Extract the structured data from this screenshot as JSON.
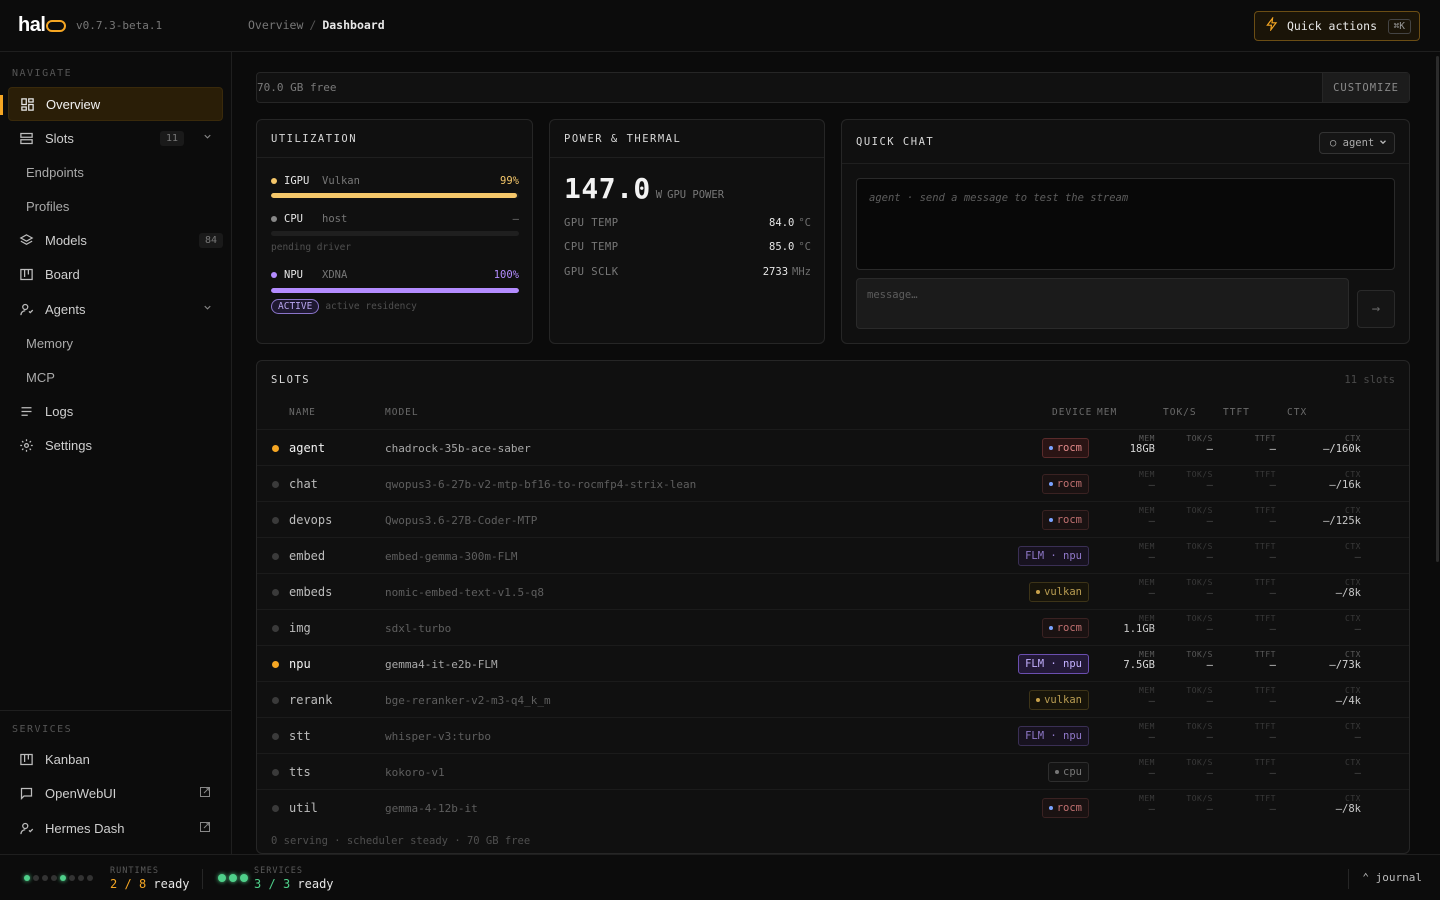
{
  "app": {
    "logo": "hal",
    "version": "v0.7.3-beta.1"
  },
  "breadcrumb": {
    "parent": "Overview",
    "separator": "/",
    "current": "Dashboard"
  },
  "quick_actions": {
    "label": "Quick actions",
    "shortcut": "⌘K"
  },
  "sidebar": {
    "navigate_label": "NAVIGATE",
    "items": [
      {
        "label": "Overview",
        "icon": "dashboard-icon"
      },
      {
        "label": "Slots",
        "icon": "slots-icon",
        "count": "11"
      },
      {
        "label": "Endpoints"
      },
      {
        "label": "Profiles"
      },
      {
        "label": "Models",
        "icon": "layers-icon",
        "count": "84"
      },
      {
        "label": "Board",
        "icon": "board-icon"
      },
      {
        "label": "Agents",
        "icon": "agent-icon"
      },
      {
        "label": "Memory"
      },
      {
        "label": "MCP"
      },
      {
        "label": "Logs",
        "icon": "logs-icon"
      },
      {
        "label": "Settings",
        "icon": "gear-icon"
      }
    ],
    "services_label": "SERVICES",
    "services": [
      {
        "label": "Kanban",
        "icon": "board-icon"
      },
      {
        "label": "OpenWebUI",
        "icon": "chat-icon"
      },
      {
        "label": "Hermes Dash",
        "icon": "agent-icon"
      }
    ]
  },
  "storage": {
    "free": "70.0 GB free",
    "customize": "CUSTOMIZE"
  },
  "utilization": {
    "title": "UTILIZATION",
    "rows": [
      {
        "name": "IGPU",
        "sub": "Vulkan",
        "pct": "99%",
        "fill": 0.99,
        "color": "#f5c76a"
      },
      {
        "name": "CPU",
        "sub": "host",
        "pct": "—",
        "fill": 0,
        "color": "#888888",
        "note": "pending driver"
      },
      {
        "name": "NPU",
        "sub": "XDNA",
        "pct": "100%",
        "fill": 1.0,
        "color": "#b48cff",
        "badge": "ACTIVE",
        "note": "active residency"
      }
    ]
  },
  "power": {
    "title": "POWER & THERMAL",
    "value": "147.0",
    "unit": "W",
    "label": "GPU POWER",
    "rows": [
      {
        "key": "GPU TEMP",
        "value": "84.0",
        "unit": "°C"
      },
      {
        "key": "CPU TEMP",
        "value": "85.0",
        "unit": "°C"
      },
      {
        "key": "GPU SCLK",
        "value": "2733",
        "unit": "MHz"
      }
    ]
  },
  "quick_chat": {
    "title": "QUICK CHAT",
    "agent_select": "○ agent",
    "output_placeholder": "agent · send a message to test the stream",
    "input_placeholder": "message…",
    "send": "→"
  },
  "slots": {
    "title": "SLOTS",
    "count": "11 slots",
    "columns": {
      "name": "NAME",
      "model": "MODEL",
      "device": "DEVICE",
      "mem": "MEM",
      "toks": "TOK/S",
      "ttft": "TTFT",
      "ctx": "CTX"
    },
    "rows": [
      {
        "name": "agent",
        "model": "chadrock-35b-ace-saber",
        "device": "rocm",
        "mem": "18GB",
        "toks": "—",
        "ttft": "—",
        "ctx": "–/160k",
        "live": true
      },
      {
        "name": "chat",
        "model": "qwopus3-6-27b-v2-mtp-bf16-to-rocmfp4-strix-lean",
        "device": "rocm",
        "mem": "—",
        "toks": "—",
        "ttft": "—",
        "ctx": "–/16k"
      },
      {
        "name": "devops",
        "model": "Qwopus3.6-27B-Coder-MTP",
        "device": "rocm",
        "mem": "—",
        "toks": "—",
        "ttft": "—",
        "ctx": "–/125k"
      },
      {
        "name": "embed",
        "model": "embed-gemma-300m-FLM",
        "device": "FLM · npu",
        "mem": "—",
        "toks": "—",
        "ttft": "—",
        "ctx": "—"
      },
      {
        "name": "embeds",
        "model": "nomic-embed-text-v1.5-q8",
        "device": "vulkan",
        "mem": "—",
        "toks": "—",
        "ttft": "—",
        "ctx": "–/8k"
      },
      {
        "name": "img",
        "model": "sdxl-turbo",
        "device": "rocm",
        "mem": "1.1GB",
        "toks": "—",
        "ttft": "—",
        "ctx": "—"
      },
      {
        "name": "npu",
        "model": "gemma4-it-e2b-FLM",
        "device": "FLM · npu",
        "mem": "7.5GB",
        "toks": "—",
        "ttft": "—",
        "ctx": "–/73k",
        "live": true
      },
      {
        "name": "rerank",
        "model": "bge-reranker-v2-m3-q4_k_m",
        "device": "vulkan",
        "mem": "—",
        "toks": "—",
        "ttft": "—",
        "ctx": "–/4k"
      },
      {
        "name": "stt",
        "model": "whisper-v3:turbo",
        "device": "FLM · npu",
        "mem": "—",
        "toks": "—",
        "ttft": "—",
        "ctx": "—"
      },
      {
        "name": "tts",
        "model": "kokoro-v1",
        "device": "cpu",
        "mem": "—",
        "toks": "—",
        "ttft": "—",
        "ctx": "—"
      },
      {
        "name": "util",
        "model": "gemma-4-12b-it",
        "device": "rocm",
        "mem": "—",
        "toks": "—",
        "ttft": "—",
        "ctx": "–/8k"
      }
    ],
    "footer": "0 serving · scheduler steady · 70 GB free"
  },
  "status": {
    "runtimes_label": "RUNTIMES",
    "runtimes_ready": "2",
    "runtimes_total": "8",
    "runtimes_on": [
      0,
      4
    ],
    "services_label": "SERVICES",
    "services_ready": "3",
    "services_total": "3",
    "ready_word": "ready",
    "of": "/",
    "journal": "⌃ journal"
  }
}
